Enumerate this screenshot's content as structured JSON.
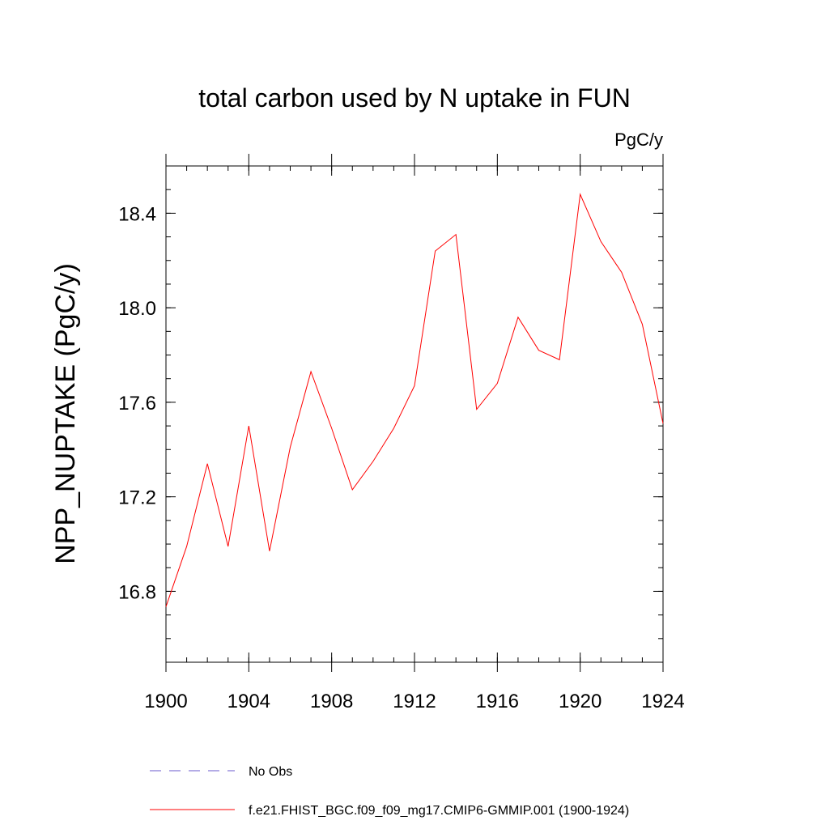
{
  "chart_data": {
    "type": "line",
    "title": "total carbon used by N uptake in FUN",
    "units": "PgC/y",
    "y_label": "NPP_NUPTAKE  (PgC/y)",
    "x": [
      1900,
      1901,
      1902,
      1903,
      1904,
      1905,
      1906,
      1907,
      1908,
      1909,
      1910,
      1911,
      1912,
      1913,
      1914,
      1915,
      1916,
      1917,
      1918,
      1919,
      1920,
      1921,
      1922,
      1923,
      1924
    ],
    "series": [
      {
        "name": "No Obs",
        "color": "#6a5acd",
        "dashed": true,
        "values": [
          null,
          null,
          null,
          null,
          null,
          null,
          null,
          null,
          null,
          null,
          null,
          null,
          null,
          null,
          null,
          null,
          null,
          null,
          null,
          null,
          null,
          null,
          null,
          null,
          null
        ]
      },
      {
        "name": "f.e21.FHIST_BGC.f09_f09_mg17.CMIP6-GMMIP.001 (1900-1924)",
        "color": "#ff0000",
        "dashed": false,
        "values": [
          16.735,
          16.99,
          17.34,
          16.99,
          17.5,
          16.97,
          17.41,
          17.73,
          17.49,
          17.23,
          17.35,
          17.49,
          17.67,
          18.24,
          18.31,
          17.57,
          17.68,
          17.96,
          17.82,
          17.78,
          18.48,
          18.28,
          18.15,
          17.93,
          17.51
        ]
      }
    ],
    "xlim": [
      1900,
      1924
    ],
    "xticks": [
      1900,
      1904,
      1908,
      1912,
      1916,
      1920,
      1924
    ],
    "ylim": [
      16.5,
      18.6
    ],
    "yticks": [
      {
        "value": 16.8,
        "label": "16.8"
      },
      {
        "value": 17.2,
        "label": "17.2"
      },
      {
        "value": 17.6,
        "label": "17.6"
      },
      {
        "value": 18.0,
        "label": "18.0"
      },
      {
        "value": 18.4,
        "label": "18.4"
      }
    ]
  }
}
